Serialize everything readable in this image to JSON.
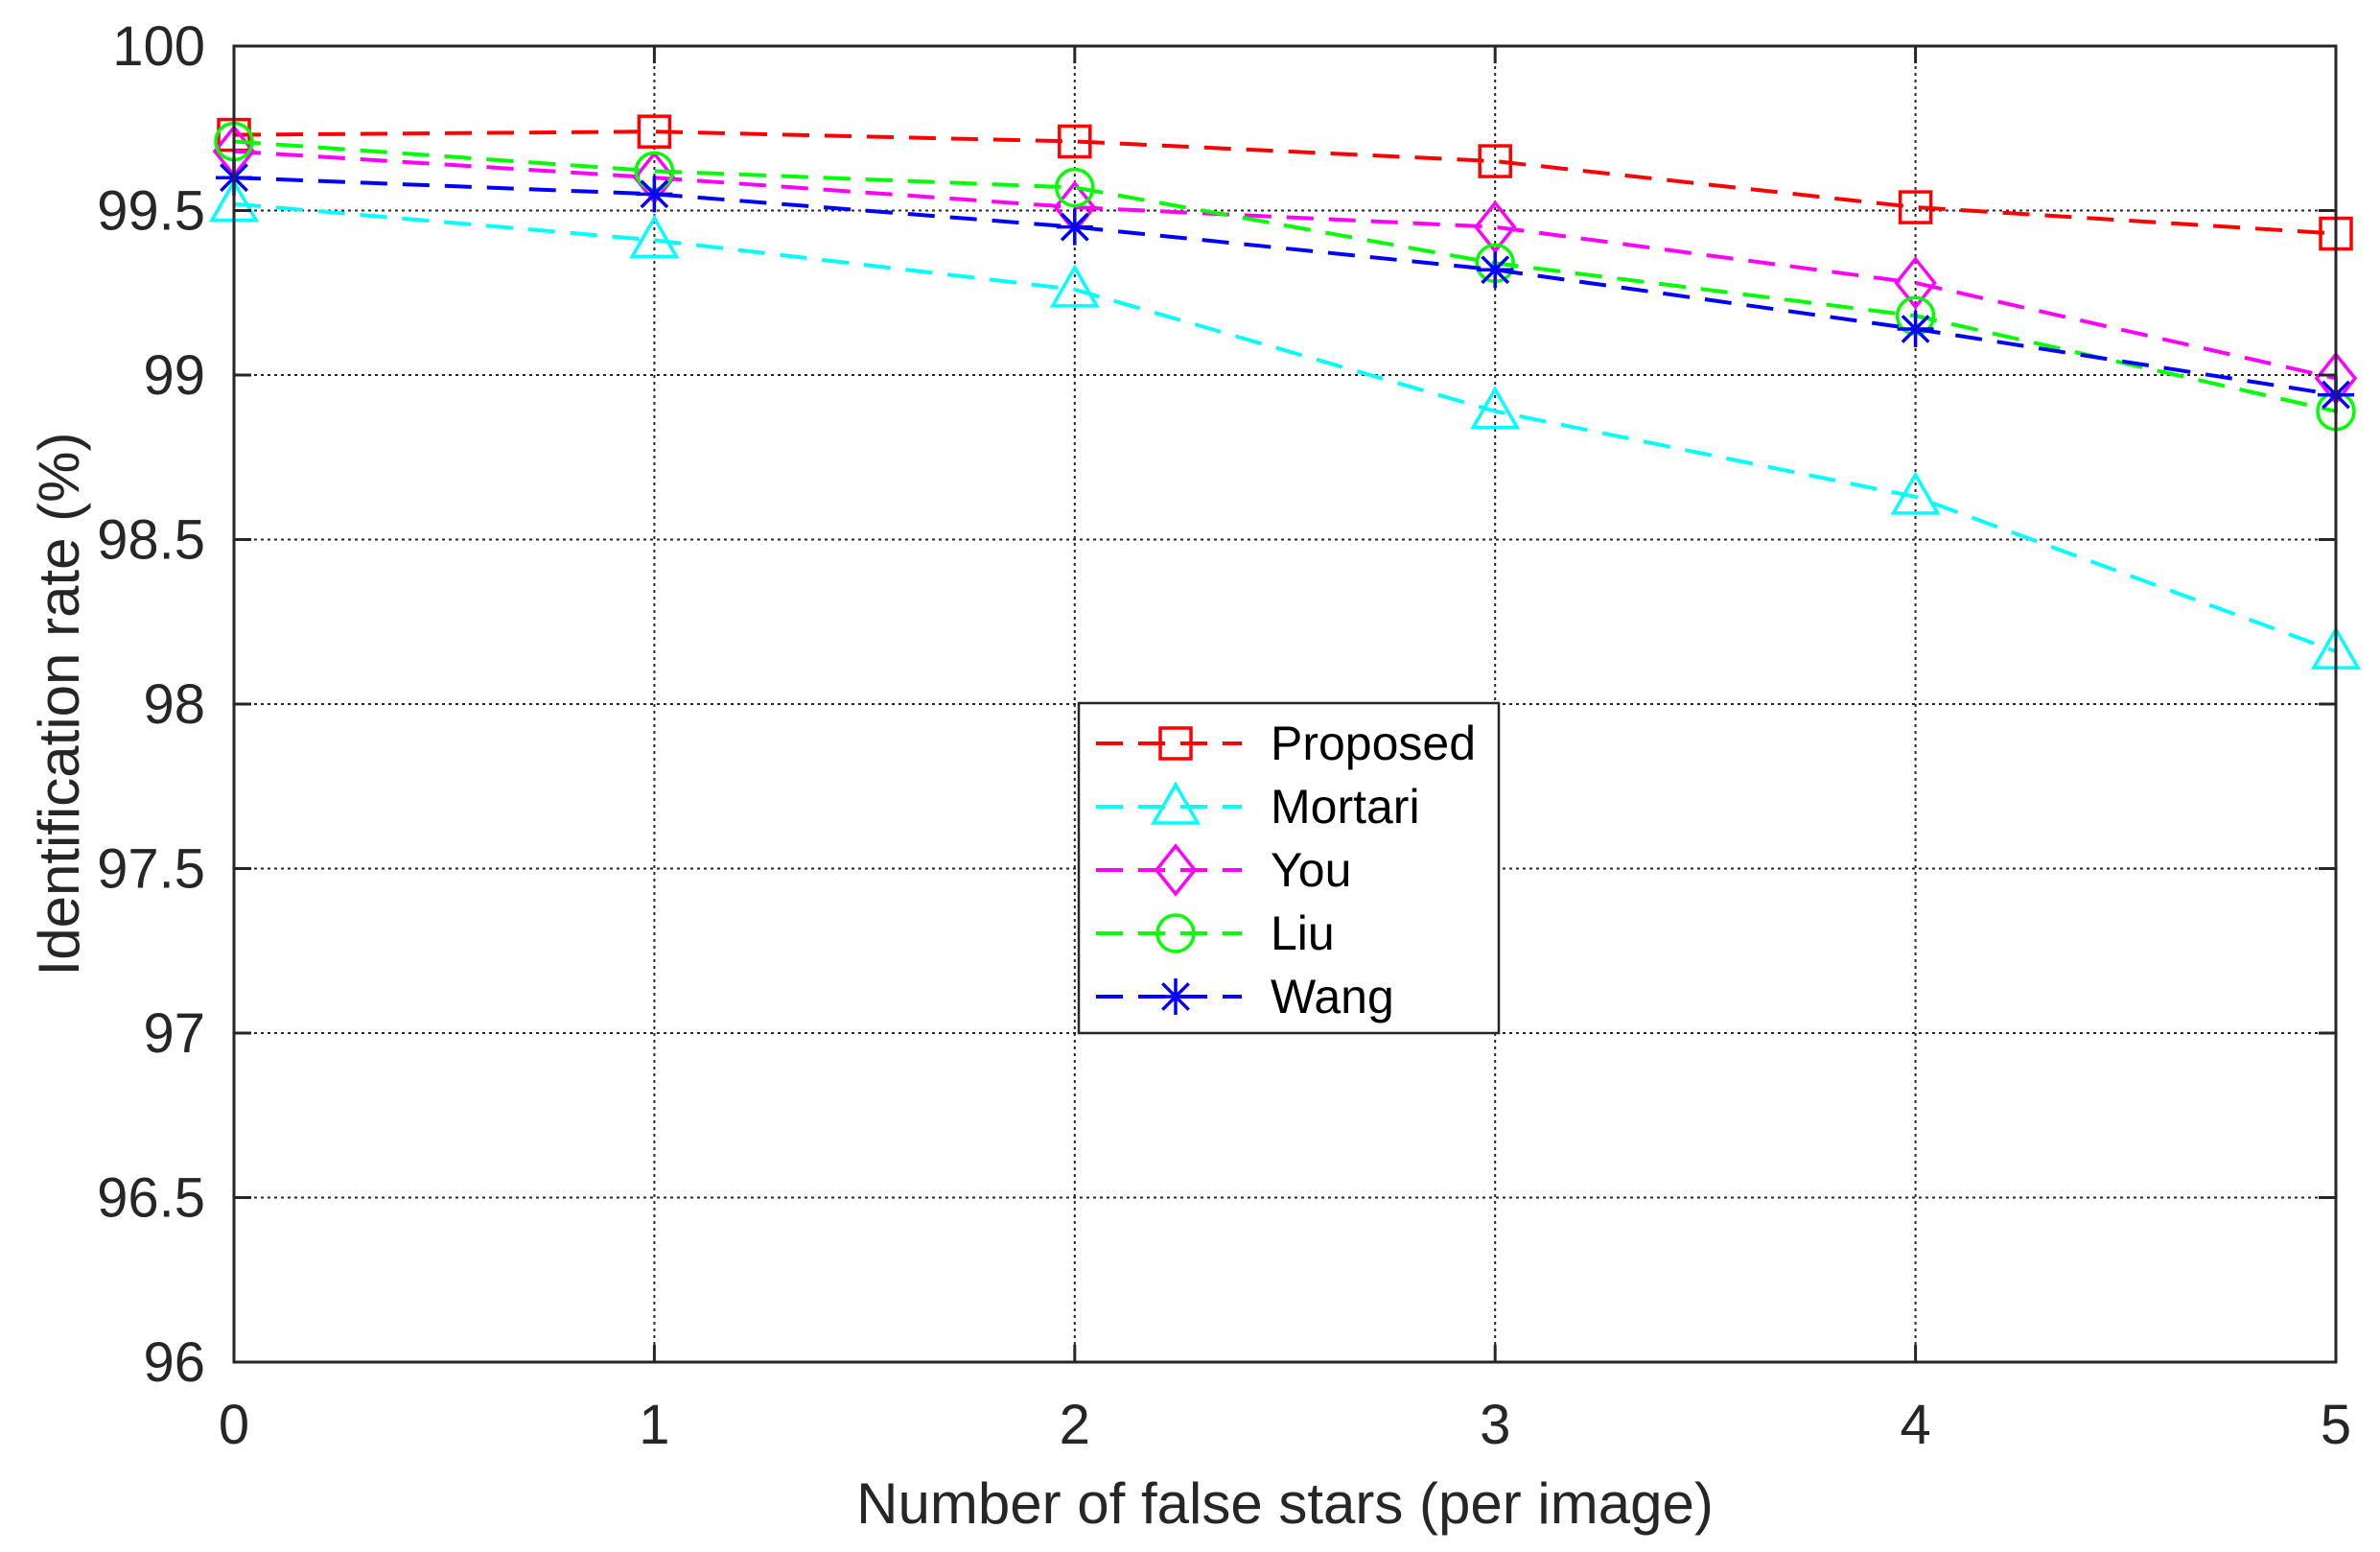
{
  "chart_data": {
    "type": "line",
    "title": "",
    "xlabel": "Number of false stars (per image)",
    "ylabel": "Identification rate (%)",
    "x": [
      0,
      1,
      2,
      3,
      4,
      5
    ],
    "xlim": [
      0,
      5
    ],
    "ylim": [
      96,
      100
    ],
    "xticks": [
      "0",
      "1",
      "2",
      "3",
      "4",
      "5"
    ],
    "yticks": [
      "96",
      "96.5",
      "97",
      "97.5",
      "98",
      "98.5",
      "99",
      "99.5",
      "100"
    ],
    "grid": true,
    "legend_position": "center",
    "series": [
      {
        "name": "Proposed",
        "color": "#ff0000",
        "marker": "square",
        "values": [
          99.73,
          99.74,
          99.71,
          99.65,
          99.51,
          99.43
        ]
      },
      {
        "name": "Mortari",
        "color": "#00ffff",
        "marker": "triangle",
        "values": [
          99.52,
          99.41,
          99.26,
          98.89,
          98.63,
          98.16
        ]
      },
      {
        "name": "You",
        "color": "#ff00ff",
        "marker": "diamond",
        "values": [
          99.68,
          99.6,
          99.51,
          99.45,
          99.28,
          98.99
        ]
      },
      {
        "name": "Liu",
        "color": "#00ff00",
        "marker": "circle",
        "values": [
          99.71,
          99.62,
          99.57,
          99.34,
          99.18,
          98.89
        ]
      },
      {
        "name": "Wang",
        "color": "#0000ff",
        "marker": "asterisk",
        "values": [
          99.6,
          99.55,
          99.45,
          99.32,
          99.14,
          98.94
        ]
      }
    ]
  }
}
